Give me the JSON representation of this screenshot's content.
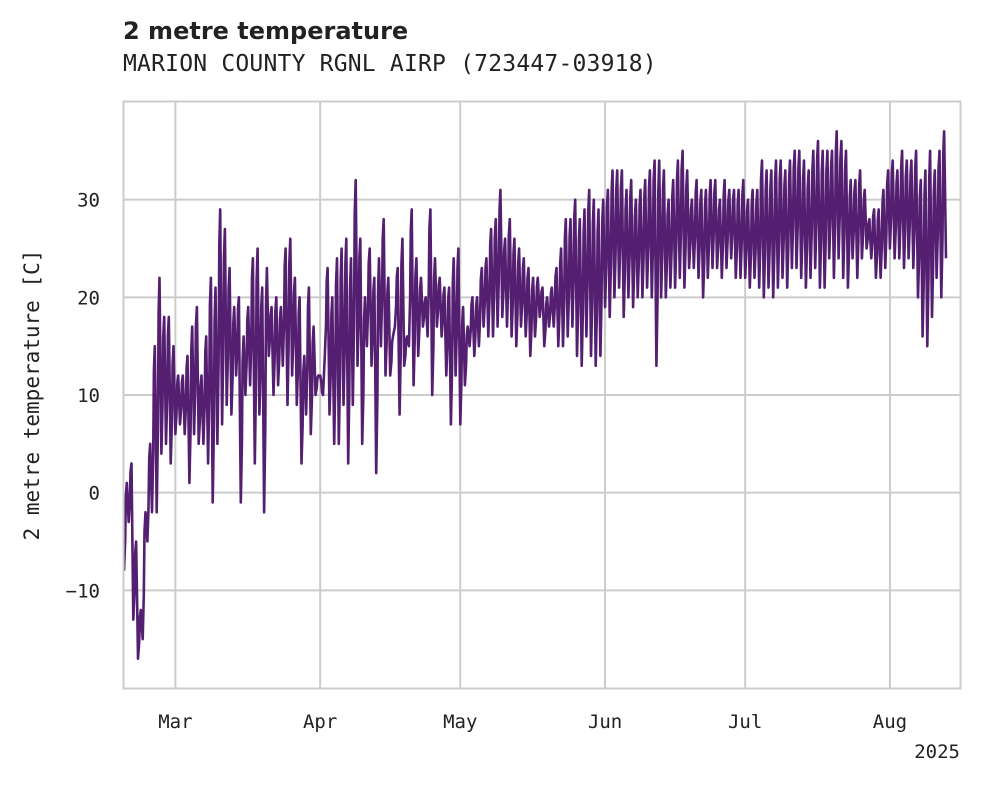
{
  "chart_data": {
    "type": "line",
    "title": "2 metre temperature",
    "subtitle": "MARION COUNTY RGNL AIRP (723447-03918)",
    "ylabel": "2 metre temperature [C]",
    "xlabel": "",
    "xlim": [
      "2025-02-18",
      "2025-08-16"
    ],
    "ylim": [
      -20,
      40
    ],
    "yticks": [
      -10,
      0,
      10,
      20,
      30
    ],
    "ytick_labels": [
      "−10",
      "0",
      "10",
      "20",
      "30"
    ],
    "xticks": [
      "2025-03-01",
      "2025-04-01",
      "2025-05-01",
      "2025-06-01",
      "2025-07-01",
      "2025-08-01"
    ],
    "xtick_labels": [
      "Mar",
      "Apr",
      "May",
      "Jun",
      "Jul",
      "Aug"
    ],
    "x_offset_label": "2025",
    "grid": true,
    "legend": "none",
    "series": [
      {
        "color": "#541f70",
        "x": [
          "2025-02-18",
          "2025-02-19",
          "2025-02-20",
          "2025-02-21",
          "2025-02-22",
          "2025-02-23",
          "2025-02-24",
          "2025-02-25",
          "2025-02-26",
          "2025-02-27",
          "2025-02-28",
          "2025-03-01",
          "2025-03-02",
          "2025-03-03",
          "2025-03-04",
          "2025-03-05",
          "2025-03-06",
          "2025-03-07",
          "2025-03-08",
          "2025-03-09",
          "2025-03-10",
          "2025-03-11",
          "2025-03-12",
          "2025-03-13",
          "2025-03-14",
          "2025-03-15",
          "2025-03-16",
          "2025-03-17",
          "2025-03-18",
          "2025-03-19",
          "2025-03-20",
          "2025-03-21",
          "2025-03-22",
          "2025-03-23",
          "2025-03-24",
          "2025-03-25",
          "2025-03-26",
          "2025-03-27",
          "2025-03-28",
          "2025-03-29",
          "2025-03-30",
          "2025-03-31",
          "2025-04-01",
          "2025-04-02",
          "2025-04-03",
          "2025-04-04",
          "2025-04-05",
          "2025-04-06",
          "2025-04-07",
          "2025-04-08",
          "2025-04-09",
          "2025-04-10",
          "2025-04-11",
          "2025-04-12",
          "2025-04-13",
          "2025-04-14",
          "2025-04-15",
          "2025-04-16",
          "2025-04-17",
          "2025-04-18",
          "2025-04-19",
          "2025-04-20",
          "2025-04-21",
          "2025-04-22",
          "2025-04-23",
          "2025-04-24",
          "2025-04-25",
          "2025-04-26",
          "2025-04-27",
          "2025-04-28",
          "2025-04-29",
          "2025-04-30",
          "2025-05-01",
          "2025-05-02",
          "2025-05-03",
          "2025-05-04",
          "2025-05-05",
          "2025-05-06",
          "2025-05-07",
          "2025-05-08",
          "2025-05-09",
          "2025-05-10",
          "2025-05-11",
          "2025-05-12",
          "2025-05-13",
          "2025-05-14",
          "2025-05-15",
          "2025-05-16",
          "2025-05-17",
          "2025-05-18",
          "2025-05-19",
          "2025-05-20",
          "2025-05-21",
          "2025-05-22",
          "2025-05-23",
          "2025-05-24",
          "2025-05-25",
          "2025-05-26",
          "2025-05-27",
          "2025-05-28",
          "2025-05-29",
          "2025-05-30",
          "2025-05-31",
          "2025-06-01",
          "2025-06-02",
          "2025-06-03",
          "2025-06-04",
          "2025-06-05",
          "2025-06-06",
          "2025-06-07",
          "2025-06-08",
          "2025-06-09",
          "2025-06-10",
          "2025-06-11",
          "2025-06-12",
          "2025-06-13",
          "2025-06-14",
          "2025-06-15",
          "2025-06-16",
          "2025-06-17",
          "2025-06-18",
          "2025-06-19",
          "2025-06-20",
          "2025-06-21",
          "2025-06-22",
          "2025-06-23",
          "2025-06-24",
          "2025-06-25",
          "2025-06-26",
          "2025-06-27",
          "2025-06-28",
          "2025-06-29",
          "2025-06-30",
          "2025-07-01",
          "2025-07-02",
          "2025-07-03",
          "2025-07-04",
          "2025-07-05",
          "2025-07-06",
          "2025-07-07",
          "2025-07-08",
          "2025-07-09",
          "2025-07-10",
          "2025-07-11",
          "2025-07-12",
          "2025-07-13",
          "2025-07-14",
          "2025-07-15",
          "2025-07-16",
          "2025-07-17",
          "2025-07-18",
          "2025-07-19",
          "2025-07-20",
          "2025-07-21",
          "2025-07-22",
          "2025-07-23",
          "2025-07-24",
          "2025-07-25",
          "2025-07-26",
          "2025-07-27",
          "2025-07-28",
          "2025-07-29",
          "2025-07-30",
          "2025-07-31",
          "2025-08-01",
          "2025-08-02",
          "2025-08-03",
          "2025-08-04",
          "2025-08-05",
          "2025-08-06",
          "2025-08-07",
          "2025-08-08",
          "2025-08-09",
          "2025-08-10",
          "2025-08-11",
          "2025-08-12",
          "2025-08-13",
          "2025-08-14",
          "2025-08-15"
        ],
        "y_min": [
          -8,
          -3,
          -13,
          -17,
          -15,
          -5,
          -2,
          -2,
          4,
          5,
          3,
          6,
          7,
          6,
          1,
          6,
          5,
          5,
          3,
          -1,
          5,
          7,
          9,
          8,
          12,
          -1,
          10,
          11,
          3,
          8,
          -2,
          14,
          10,
          11,
          13,
          9,
          12,
          9,
          3,
          8,
          6,
          10,
          12,
          14,
          8,
          5,
          5,
          9,
          3,
          9,
          13,
          5,
          15,
          13,
          2,
          15,
          12,
          12,
          17,
          8,
          13,
          15,
          11,
          14,
          17,
          16,
          10,
          17,
          16,
          12,
          7,
          12,
          7,
          11,
          15,
          14,
          15,
          17,
          16,
          16,
          17,
          18,
          17,
          16,
          15,
          17,
          16,
          14,
          16,
          18,
          15,
          17,
          17,
          15,
          15,
          16,
          17,
          14,
          13,
          16,
          14,
          13,
          14,
          19,
          18,
          20,
          21,
          18,
          20,
          19,
          20,
          20,
          21,
          20,
          13,
          20,
          20,
          21,
          21,
          22,
          21,
          23,
          23,
          22,
          20,
          22,
          23,
          23,
          22,
          23,
          24,
          22,
          22,
          22,
          21,
          22,
          21,
          20,
          21,
          20,
          21,
          22,
          21,
          23,
          23,
          22,
          21,
          22,
          23,
          21,
          21,
          24,
          22,
          24,
          22,
          21,
          24,
          22,
          24,
          25,
          24,
          22,
          22,
          23,
          25,
          24,
          24,
          23,
          24,
          23,
          20,
          16,
          15,
          18,
          22,
          20,
          24,
          23,
          23,
          24,
          25,
          24,
          23,
          20,
          22
        ],
        "y_max": [
          1,
          3,
          -5,
          -12,
          -2,
          5,
          15,
          22,
          18,
          18,
          15,
          12,
          12,
          14,
          17,
          19,
          12,
          16,
          22,
          21,
          29,
          27,
          23,
          19,
          20,
          16,
          19,
          24,
          25,
          21,
          23,
          19,
          20,
          19,
          25,
          26,
          22,
          20,
          14,
          21,
          17,
          12,
          10,
          23,
          20,
          24,
          25,
          26,
          24,
          32,
          26,
          20,
          25,
          22,
          24,
          28,
          22,
          16,
          23,
          26,
          16,
          29,
          24,
          22,
          20,
          29,
          24,
          22,
          21,
          21,
          24,
          25,
          19,
          17,
          20,
          20,
          23,
          24,
          27,
          28,
          31,
          26,
          28,
          26,
          25,
          24,
          23,
          22,
          22,
          21,
          20,
          21,
          23,
          25,
          28,
          28,
          30,
          28,
          29,
          31,
          30,
          29,
          30,
          31,
          33,
          33,
          33,
          31,
          32,
          30,
          31,
          32,
          33,
          34,
          34,
          33,
          30,
          32,
          34,
          35,
          33,
          30,
          32,
          31,
          31,
          32,
          32,
          30,
          32,
          31,
          31,
          31,
          32,
          30,
          31,
          31,
          34,
          33,
          33,
          34,
          34,
          33,
          34,
          35,
          35,
          34,
          33,
          35,
          36,
          35,
          35,
          35,
          37,
          36,
          35,
          32,
          32,
          33,
          31,
          28,
          29,
          29,
          31,
          33,
          34,
          33,
          35,
          34,
          34,
          35,
          32,
          33,
          35,
          33,
          35,
          37
        ]
      }
    ]
  }
}
